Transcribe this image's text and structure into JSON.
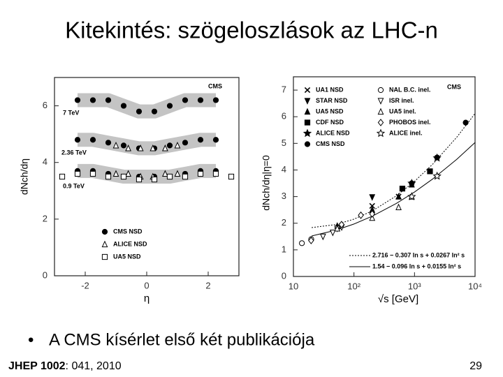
{
  "slide": {
    "title": "Kitekintés: szögeloszlások az LHC-n",
    "bullet": "A CMS kísérlet első két publikációja",
    "footer_bold": "JHEP 1002",
    "footer_rest": ": 041, 2010",
    "page_number": "29"
  },
  "chart_data": [
    {
      "type": "scatter",
      "xlabel": "η",
      "ylabel": "dNch/dη",
      "xlim": [
        -3,
        3
      ],
      "ylim": [
        0,
        7
      ],
      "xticks": [
        -2,
        0,
        2
      ],
      "yticks": [
        0,
        2,
        4,
        6
      ],
      "legend": "lower right",
      "annotations": [
        "CMS",
        "7 TeV",
        "2.36 TeV",
        "0.9 TeV"
      ],
      "series": [
        {
          "name": "CMS NSD",
          "marker": "circle",
          "color": "#000000",
          "band": true,
          "x": [
            -2.25,
            -1.75,
            -1.25,
            -0.75,
            -0.25,
            0.25,
            0.75,
            1.25,
            1.75,
            2.25,
            -2.25,
            -1.75,
            -1.25,
            -0.75,
            -0.25,
            0.25,
            0.75,
            1.25,
            1.75,
            2.25,
            -2.25,
            -1.75,
            -1.25,
            -0.75,
            -0.25,
            0.25,
            0.75,
            1.25,
            1.75,
            2.25
          ],
          "values": [
            6.2,
            6.2,
            6.2,
            6.0,
            5.8,
            5.8,
            6.0,
            6.2,
            6.2,
            6.2,
            4.8,
            4.8,
            4.7,
            4.6,
            4.5,
            4.5,
            4.6,
            4.7,
            4.8,
            4.8,
            3.7,
            3.7,
            3.6,
            3.5,
            3.5,
            3.5,
            3.5,
            3.6,
            3.7,
            3.7
          ]
        },
        {
          "name": "ALICE NSD",
          "marker": "triangle-open",
          "color": "#000000",
          "x": [
            -1.0,
            -0.6,
            -0.2,
            0.2,
            0.6,
            1.0,
            -1.0,
            -0.6,
            -0.2,
            0.2,
            0.6,
            1.0
          ],
          "values": [
            4.6,
            4.5,
            4.5,
            4.5,
            4.5,
            4.6,
            3.6,
            3.6,
            3.5,
            3.5,
            3.6,
            3.6
          ]
        },
        {
          "name": "UA5 NSD",
          "marker": "square-open",
          "color": "#000000",
          "x": [
            -2.75,
            -2.25,
            -1.75,
            -1.25,
            -0.75,
            -0.25,
            0.25,
            0.75,
            1.25,
            1.75,
            2.25,
            2.75
          ],
          "values": [
            3.5,
            3.6,
            3.6,
            3.5,
            3.5,
            3.4,
            3.4,
            3.5,
            3.5,
            3.6,
            3.6,
            3.5
          ]
        }
      ]
    },
    {
      "type": "scatter",
      "xlabel": "√s [GeV]",
      "ylabel": "dNch/dη|η=0",
      "xlog": true,
      "xlim": [
        10,
        10000
      ],
      "ylim": [
        0,
        7.5
      ],
      "xticks": [
        10,
        {
          "value": 100,
          "label": "10²"
        },
        {
          "value": 1000,
          "label": "10³"
        },
        {
          "value": 10000,
          "label": "10⁴"
        }
      ],
      "yticks": [
        0,
        1,
        2,
        3,
        4,
        5,
        6,
        7
      ],
      "legend": "upper left",
      "annotations": [
        "CMS"
      ],
      "series": [
        {
          "name": "UA1 NSD",
          "marker": "x",
          "color": "#000000",
          "x": [
            200,
            546
          ],
          "values": [
            2.65,
            3.0
          ]
        },
        {
          "name": "STAR NSD",
          "marker": "triangle-down",
          "color": "#000000",
          "x": [
            200
          ],
          "values": [
            2.98
          ]
        },
        {
          "name": "UA5 NSD",
          "marker": "triangle",
          "color": "#000000",
          "x": [
            53,
            200,
            546,
            900
          ],
          "values": [
            1.9,
            2.5,
            3.0,
            3.45
          ]
        },
        {
          "name": "CDF NSD",
          "marker": "square",
          "color": "#000000",
          "x": [
            630,
            1800
          ],
          "values": [
            3.3,
            3.95
          ]
        },
        {
          "name": "ALICE NSD",
          "marker": "star",
          "color": "#000000",
          "x": [
            900,
            2360
          ],
          "values": [
            3.5,
            4.45
          ]
        },
        {
          "name": "CMS NSD",
          "marker": "circle",
          "color": "#000000",
          "x": [
            900,
            2360,
            7000
          ],
          "values": [
            3.5,
            4.47,
            5.78
          ]
        },
        {
          "name": "NAL B.C. inel.",
          "marker": "circle-open",
          "color": "#000000",
          "x": [
            13.8,
            19.7
          ],
          "values": [
            1.25,
            1.4
          ]
        },
        {
          "name": "ISR inel.",
          "marker": "triangle-down-open",
          "color": "#000000",
          "x": [
            30.8,
            44.7,
            53,
            62.7
          ],
          "values": [
            1.5,
            1.65,
            1.8,
            1.85
          ]
        },
        {
          "name": "UA5 inel.",
          "marker": "triangle-open",
          "color": "#000000",
          "x": [
            53,
            200,
            546,
            900
          ],
          "values": [
            1.8,
            2.2,
            2.6,
            3.0
          ]
        },
        {
          "name": "PHOBOS inel.",
          "marker": "diamond-open",
          "color": "#000000",
          "x": [
            19.6,
            62.4,
            130,
            200
          ],
          "values": [
            1.35,
            1.95,
            2.3,
            2.35
          ]
        },
        {
          "name": "ALICE inel.",
          "marker": "star-open",
          "color": "#000000",
          "x": [
            900,
            2360
          ],
          "values": [
            3.0,
            3.77
          ]
        },
        {
          "name": "2.716 − 0.307 ln s + 0.0267 ln² s",
          "line": "dotted",
          "color": "#000000",
          "x": [
            20,
            50,
            100,
            200,
            500,
            1000,
            2000,
            5000,
            10000
          ],
          "values": [
            1.835,
            1.948,
            2.153,
            2.461,
            3.025,
            3.571,
            4.22,
            5.233,
            6.12
          ]
        },
        {
          "name": "1.54 − 0.096 ln s + 0.0155 ln² s",
          "line": "solid",
          "color": "#000000",
          "x": [
            20,
            50,
            100,
            200,
            500,
            1000,
            2000,
            5000,
            10000
          ],
          "values": [
            1.521,
            1.738,
            1.97,
            2.263,
            2.742,
            3.172,
            3.663,
            4.402,
            5.031
          ]
        }
      ]
    }
  ]
}
